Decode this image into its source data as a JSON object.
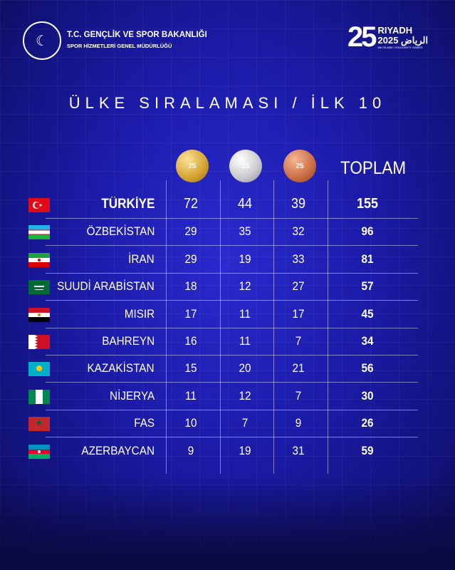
{
  "header": {
    "ministry_title": "T.C. GENÇLİK VE SPOR BAKANLIĞI",
    "ministry_subtitle": "SPOR HİZMETLERİ GENEL MÜDÜRLÜĞÜ",
    "event_logo": {
      "number": "25",
      "name": "RIYADH",
      "year": "2025",
      "arabic": "الرياض",
      "caption": "6th ISLAMIC SOLIDARITY GAMES"
    }
  },
  "title": "ÜLKE SIRALAMASI / İLK 10",
  "columns": {
    "gold": "gold-medal-icon",
    "silver": "silver-medal-icon",
    "bronze": "bronze-medal-icon",
    "total": "TOPLAM"
  },
  "colors": {
    "background": "#1b1ba8",
    "gold": "#d4a12f",
    "silver": "#c8c8cc",
    "bronze": "#c96c42"
  },
  "rows": [
    {
      "country": "TÜRKİYE",
      "gold": "72",
      "silver": "44",
      "bronze": "39",
      "total": "155"
    },
    {
      "country": "ÖZBEKİSTAN",
      "gold": "29",
      "silver": "35",
      "bronze": "32",
      "total": "96"
    },
    {
      "country": "İRAN",
      "gold": "29",
      "silver": "19",
      "bronze": "33",
      "total": "81"
    },
    {
      "country": "SUUDİ ARABİSTAN",
      "gold": "18",
      "silver": "12",
      "bronze": "27",
      "total": "57"
    },
    {
      "country": "MISIR",
      "gold": "17",
      "silver": "11",
      "bronze": "17",
      "total": "45"
    },
    {
      "country": "BAHREYN",
      "gold": "16",
      "silver": "11",
      "bronze": "7",
      "total": "34"
    },
    {
      "country": "KAZAKİSTAN",
      "gold": "15",
      "silver": "20",
      "bronze": "21",
      "total": "56"
    },
    {
      "country": "NİJERYA",
      "gold": "11",
      "silver": "12",
      "bronze": "7",
      "total": "30"
    },
    {
      "country": "FAS",
      "gold": "10",
      "silver": "7",
      "bronze": "9",
      "total": "26"
    },
    {
      "country": "AZERBAYCAN",
      "gold": "9",
      "silver": "19",
      "bronze": "31",
      "total": "59"
    }
  ]
}
